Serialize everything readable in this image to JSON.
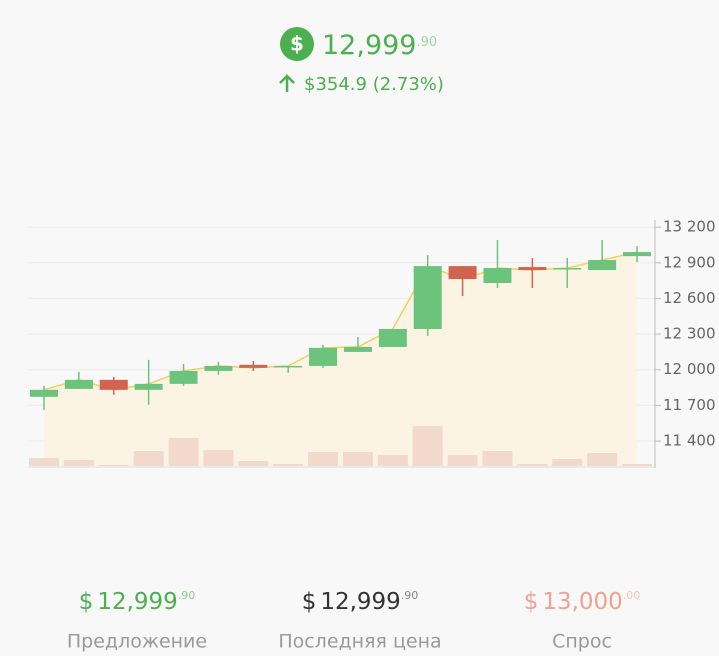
{
  "header": {
    "currency": "$",
    "price": "12,999",
    "price_decimals": ".90",
    "change": "$354.9 (2.73%)"
  },
  "chart_data": {
    "type": "candlestick",
    "open": [
      11772,
      11839,
      11915,
      11831,
      11881,
      11990,
      12041,
      12024,
      12032,
      12150,
      12192,
      12343,
      12872,
      12730,
      12864,
      12848,
      12839,
      12956
    ],
    "high": [
      11864,
      11982,
      11940,
      12083,
      12049,
      12066,
      12074,
      12032,
      12209,
      12276,
      12343,
      12965,
      12872,
      13091,
      12940,
      12940,
      13091,
      13040
    ],
    "low": [
      11663,
      11839,
      11789,
      11705,
      11864,
      11957,
      11990,
      11974,
      12016,
      12150,
      12192,
      12284,
      12620,
      12688,
      12688,
      12688,
      12839,
      12906
    ],
    "close": [
      11831,
      11915,
      11831,
      11881,
      11990,
      12032,
      12016,
      12032,
      12184,
      12192,
      12343,
      12872,
      12763,
      12856,
      12839,
      12856,
      12923,
      12990
    ],
    "volume": [
      8,
      6,
      1,
      15,
      28,
      16,
      5,
      2,
      14,
      14,
      11,
      40,
      11,
      15,
      2,
      7,
      13,
      2
    ],
    "up_color": "#6cc47c",
    "down_color": "#d0644f",
    "volume_color": "#f3d9cc",
    "line_color": "#f0d060",
    "area_color": "#fbf3e4",
    "ylim": [
      11190,
      13260
    ],
    "yticks": [
      {
        "value": 13200,
        "label": "13 200"
      },
      {
        "value": 12900,
        "label": "12 900"
      },
      {
        "value": 12600,
        "label": "12 600"
      },
      {
        "value": 12300,
        "label": "12 300"
      },
      {
        "value": 12000,
        "label": "12 000"
      },
      {
        "value": 11700,
        "label": "11 700"
      },
      {
        "value": 11400,
        "label": "11 400"
      }
    ],
    "grid": true
  },
  "quotes": [
    {
      "currency": "$",
      "price": "12,999",
      "decimals": ".90",
      "label": "Предложение",
      "color": "#4caf50"
    },
    {
      "currency": "$",
      "price": "12,999",
      "decimals": ".90",
      "label": "Последняя цена",
      "color": "#333333"
    },
    {
      "currency": "$",
      "price": "13,000",
      "decimals": ".00",
      "label": "Спрос",
      "color": "#eea391"
    }
  ]
}
